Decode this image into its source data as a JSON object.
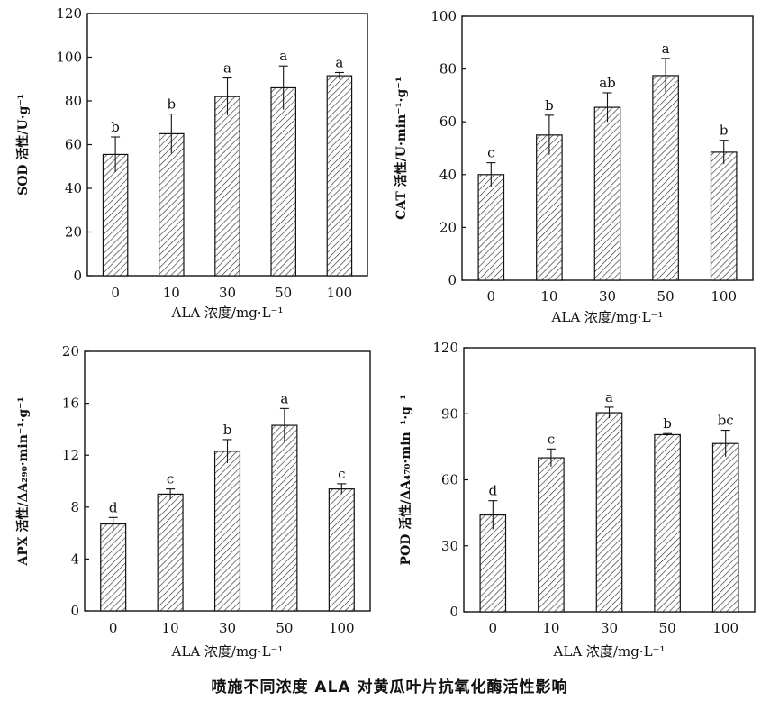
{
  "caption": "喷施不同浓度 ALA 对黄瓜叶片抗氧化酶活性影响",
  "chart_data": [
    {
      "type": "bar",
      "ylabel": "SOD 活性/U·g⁻¹",
      "xlabel": "ALA 浓度/mg·L⁻¹",
      "categories": [
        "0",
        "10",
        "30",
        "50",
        "100"
      ],
      "values": [
        55.5,
        65,
        82,
        86,
        91.5
      ],
      "errors": [
        8,
        9,
        8.5,
        10,
        1.5
      ],
      "labels": [
        "b",
        "b",
        "a",
        "a",
        "a"
      ],
      "ylim": [
        0,
        120
      ],
      "yticks": [
        0,
        20,
        40,
        60,
        80,
        100,
        120
      ]
    },
    {
      "type": "bar",
      "ylabel": "CAT 活性/U·min⁻¹·g⁻¹",
      "xlabel": "ALA 浓度/mg·L⁻¹",
      "categories": [
        "0",
        "10",
        "30",
        "50",
        "100"
      ],
      "values": [
        40,
        55,
        65.5,
        77.5,
        48.5
      ],
      "errors": [
        4.5,
        7.5,
        5.5,
        6.5,
        4.5
      ],
      "labels": [
        "c",
        "b",
        "ab",
        "a",
        "b"
      ],
      "ylim": [
        0,
        100
      ],
      "yticks": [
        0,
        20,
        40,
        60,
        80,
        100
      ]
    },
    {
      "type": "bar",
      "ylabel": "APX 活性/ΔA₂₉₀·min⁻¹·g⁻¹",
      "xlabel": "ALA 浓度/mg·L⁻¹",
      "categories": [
        "0",
        "10",
        "30",
        "50",
        "100"
      ],
      "values": [
        6.7,
        9.0,
        12.3,
        14.3,
        9.4
      ],
      "errors": [
        0.5,
        0.4,
        0.9,
        1.3,
        0.4
      ],
      "labels": [
        "d",
        "c",
        "b",
        "a",
        "c"
      ],
      "ylim": [
        0,
        20
      ],
      "yticks": [
        0,
        4,
        8,
        12,
        16,
        20
      ]
    },
    {
      "type": "bar",
      "ylabel": "POD 活性/ΔA₄₇₀·min⁻¹·g⁻¹",
      "xlabel": "ALA 浓度/mg·L⁻¹",
      "categories": [
        "0",
        "10",
        "30",
        "50",
        "100"
      ],
      "values": [
        44,
        70,
        90.5,
        80.5,
        76.5
      ],
      "errors": [
        6.5,
        4,
        2.5,
        0.5,
        6
      ],
      "labels": [
        "d",
        "c",
        "a",
        "b",
        "bc"
      ],
      "ylim": [
        0,
        120
      ],
      "yticks": [
        0,
        30,
        60,
        90,
        120
      ]
    }
  ]
}
